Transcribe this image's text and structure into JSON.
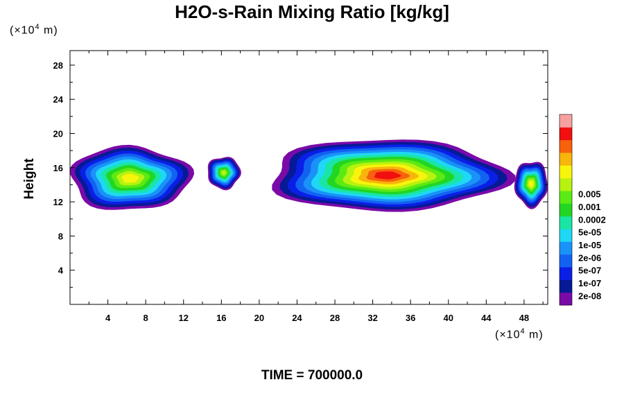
{
  "chart_data": {
    "type": "heatmap",
    "title": "H2O-s-Rain Mixing Ratio [kg/kg]",
    "ylabel": "Height",
    "x_unit": {
      "prefix": "(×10",
      "exp": "4",
      "suffix": " m)"
    },
    "y_unit": {
      "prefix": "(×10",
      "exp": "4",
      "suffix": " m)"
    },
    "xlim": [
      0,
      50.5
    ],
    "ylim": [
      0,
      29.7
    ],
    "x_ticks": [
      4,
      8,
      12,
      16,
      20,
      24,
      28,
      32,
      36,
      40,
      44,
      48
    ],
    "y_ticks": [
      4,
      8,
      12,
      16,
      20,
      24,
      28
    ],
    "footer": "TIME = 700000.0",
    "colorbar": {
      "colors": [
        "#7a0aa8",
        "#061a96",
        "#0a1fe6",
        "#1262f2",
        "#1a92f8",
        "#1ed8f5",
        "#19e6a4",
        "#22d622",
        "#5cea14",
        "#b7f210",
        "#f8f50c",
        "#f8b50c",
        "#f8620c",
        "#f01010",
        "#f8a0a0"
      ],
      "labels": [
        "2e-08",
        "1e-07",
        "5e-07",
        "2e-06",
        "1e-05",
        "5e-05",
        "0.0002",
        "0.001",
        "0.005"
      ],
      "label_slots": [
        1,
        3,
        5,
        7,
        9,
        11,
        13,
        15,
        17
      ]
    },
    "cloud_bands": [
      {
        "x_start": 0.0,
        "x_end": 12.7,
        "bottom": 11.0,
        "top": 18.5,
        "peak_level": 10
      },
      {
        "x_start": 14.5,
        "x_end": 18.0,
        "bottom": 13.5,
        "top": 17.3,
        "peak_level": 9
      },
      {
        "x_start": 21.0,
        "x_end": 46.0,
        "bottom": 10.9,
        "top": 19.3,
        "peak_level": 13
      },
      {
        "x_start": 47.0,
        "x_end": 50.5,
        "bottom": 11.4,
        "top": 16.8,
        "peak_level": 10
      }
    ]
  }
}
